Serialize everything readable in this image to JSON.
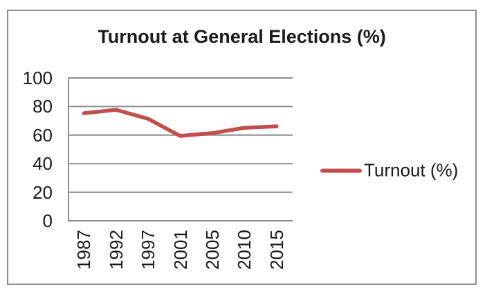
{
  "chart_data": {
    "type": "line",
    "title": "Turnout at General Elections (%)",
    "categories": [
      "1987",
      "1992",
      "1997",
      "2001",
      "2005",
      "2010",
      "2015"
    ],
    "series": [
      {
        "name": "Turnout (%)",
        "color": "#c0504d",
        "values": [
          75.3,
          77.7,
          71.4,
          59.4,
          61.4,
          65.1,
          66.1
        ]
      }
    ],
    "xlabel": "",
    "ylabel": "",
    "ylim": [
      0,
      100
    ],
    "yticks": [
      0,
      20,
      40,
      60,
      80,
      100
    ],
    "grid": true,
    "legend_position": "right",
    "legend": {
      "label": "Turnout (%)"
    }
  },
  "style": {
    "background": "#ffffff",
    "text_color": "#1a1a1a",
    "frame_border_color": "#8c8c8c",
    "gridline_color": "#8c8c8c",
    "axis_color": "#8c8c8c",
    "line_color": "#c0504d"
  }
}
